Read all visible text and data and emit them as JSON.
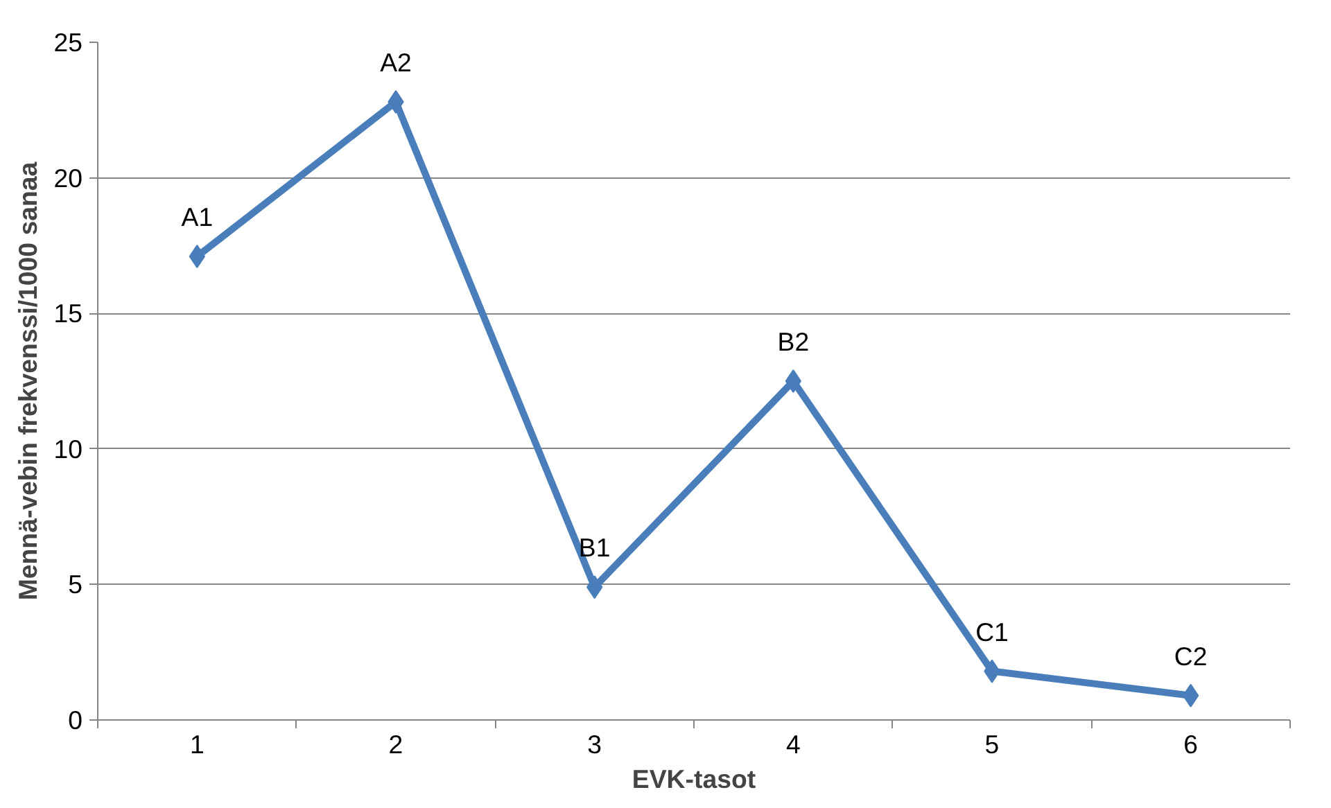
{
  "chart_data": {
    "type": "line",
    "xlabel": "EVK-tasot",
    "ylabel": "Mennä-vebin frekvenssi/1000 sanaa",
    "categories": [
      "1",
      "2",
      "3",
      "4",
      "5",
      "6"
    ],
    "series": [
      {
        "color": "#4a7ebb",
        "values": [
          17.1,
          22.8,
          4.9,
          12.5,
          1.8,
          0.9
        ]
      }
    ],
    "ylim": [
      0,
      25
    ],
    "yticks": [
      0,
      5,
      10,
      15,
      20,
      25
    ],
    "grid": "y",
    "marker": "diamond",
    "line_style": "solid",
    "annotations": [
      {
        "text": "A1",
        "x": "1",
        "y": 17.1
      },
      {
        "text": "A2",
        "x": "2",
        "y": 22.8
      },
      {
        "text": "B1",
        "x": "3",
        "y": 4.9
      },
      {
        "text": "B2",
        "x": "4",
        "y": 12.5
      },
      {
        "text": "C1",
        "x": "5",
        "y": 1.8
      },
      {
        "text": "C2",
        "x": "6",
        "y": 0.9
      }
    ]
  }
}
